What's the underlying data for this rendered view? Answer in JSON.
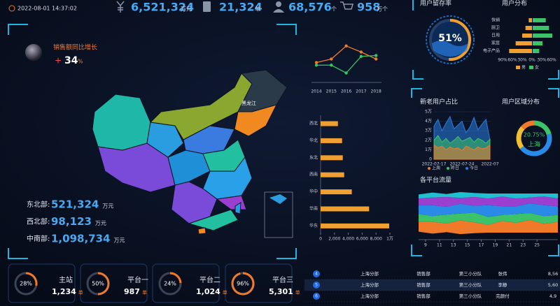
{
  "header": {
    "datetime": "2022-08-01 14:37:02"
  },
  "kpis": [
    {
      "value": "6,521,324",
      "unit": "万元"
    },
    {
      "value": "21,324",
      "unit": "单"
    },
    {
      "value": "68,576",
      "unit": "个"
    },
    {
      "value": "958",
      "unit": "万个"
    }
  ],
  "sales_growth": {
    "title": "销售额同比增长",
    "sign": "+",
    "value": 34,
    "unit": "%"
  },
  "regions": [
    {
      "name": "东北部:",
      "value": "521,324",
      "unit": "万元"
    },
    {
      "name": "西北部:",
      "value": "98,123",
      "unit": "万元"
    },
    {
      "name": "中南部:",
      "value": "1,098,734",
      "unit": "万元"
    }
  ],
  "map": {
    "label": "黑龙江"
  },
  "gauges": {
    "names": [
      "主站",
      "平台一",
      "平台二",
      "平台三"
    ],
    "values": [
      28,
      50,
      24,
      96
    ],
    "value_labels": [
      "28%",
      "50%",
      "24%",
      "96%"
    ],
    "counts": [
      "1,234",
      "987",
      "1,024",
      "5,301"
    ],
    "unit": "单"
  },
  "trend_chart": {
    "type": "line",
    "categories": [
      "2014",
      "2015",
      "2016",
      "2017",
      "2018"
    ],
    "series": [
      {
        "color": "#f07a2a",
        "values": [
          18,
          22,
          37,
          30,
          22
        ]
      },
      {
        "color": "#3cc36a",
        "values": [
          15,
          15,
          6,
          25,
          26
        ]
      }
    ],
    "ylim": [
      0,
      40
    ]
  },
  "region_bar": {
    "type": "hbar",
    "categories": [
      "西北",
      "华北",
      "东北",
      "西南",
      "华中",
      "华南",
      "华东"
    ],
    "values": [
      2500,
      3100,
      3200,
      3400,
      4500,
      7000,
      9900
    ],
    "color": "#f0a030",
    "xlim": [
      0,
      10000
    ],
    "xticks": [
      0,
      {
        "value": 2000,
        "label": "2,000"
      },
      {
        "value": 4000,
        "label": "4,000"
      },
      {
        "value": 6000,
        "label": "6,000"
      },
      {
        "value": 8000,
        "label": "8,000"
      },
      {
        "value": 10000,
        "label": "1万"
      }
    ]
  },
  "retention": {
    "title": "用户留存率",
    "value": 51,
    "value_label": "51%"
  },
  "user_distribution": {
    "title": "用户分布",
    "type": "butterfly",
    "categories": [
      "快销",
      "厨卫",
      "日用",
      "家居",
      "电子产品"
    ],
    "series": [
      {
        "name": "男",
        "color": "#f0a030",
        "values": [
          10,
          20,
          30,
          50,
          70
        ]
      },
      {
        "name": "女",
        "color": "#3cc36a",
        "values": [
          40,
          50,
          60,
          30,
          20
        ]
      }
    ],
    "xticks": [
      {
        "value": -90,
        "label": "90%"
      },
      {
        "value": -60,
        "label": "60%"
      },
      {
        "value": -30,
        "label": "30%"
      },
      {
        "value": 0,
        "label": "0%"
      },
      {
        "value": 30,
        "label": "30%"
      },
      {
        "value": 60,
        "label": "60%"
      }
    ]
  },
  "new_old_users": {
    "title": "新老用户占比",
    "type": "area",
    "categories": [
      "2022-07-17",
      null,
      null,
      null,
      null,
      null,
      null,
      "2022-07-24",
      null,
      null,
      null,
      null,
      null,
      null,
      "2022-07"
    ],
    "series": [
      {
        "name": "上周",
        "color": "#f07a2a",
        "values": [
          15000,
          12000,
          14000,
          10000,
          13000,
          11000,
          12000,
          9000,
          14000,
          12000,
          10000,
          13000,
          11000,
          12000,
          15000
        ]
      },
      {
        "name": "昨日",
        "color": "#3cc36a",
        "values": [
          20000,
          25000,
          18000,
          22000,
          17000,
          20000,
          24000,
          19000,
          21000,
          23000,
          18000,
          22000,
          20000,
          17000,
          21000
        ]
      },
      {
        "name": "今日",
        "color": "#2a7de0",
        "values": [
          35000,
          42000,
          30000,
          38000,
          45000,
          32000,
          36000,
          40000,
          28000,
          34000,
          44000,
          31000,
          37000,
          42000,
          20000
        ]
      }
    ],
    "ylim": [
      0,
      50000
    ],
    "yticks": [
      0,
      {
        "value": 10000,
        "label": "1万"
      },
      {
        "value": 20000,
        "label": "2万"
      },
      {
        "value": 30000,
        "label": "3万"
      },
      {
        "value": 40000,
        "label": "4万"
      },
      {
        "value": 50000,
        "label": "5万"
      }
    ]
  },
  "region_share": {
    "title": "用户区域分布",
    "type": "donut",
    "categories": [
      "上海",
      null,
      null,
      null
    ],
    "values": [
      20.75,
      44,
      22,
      13.25
    ],
    "value_labels": [
      "20.75%",
      null,
      null,
      null
    ],
    "colors": [
      "#3cc36a",
      "#2a8ae8",
      "#f0c030",
      "#f07a2a"
    ]
  },
  "platform_flow": {
    "title": "各平台流量",
    "type": "stream",
    "x": [
      8,
      10,
      12,
      14,
      16,
      18,
      20,
      22,
      24,
      26,
      28
    ],
    "series": [
      {
        "color": "#f07a2a",
        "values": [
          10,
          12,
          9,
          14,
          11,
          8,
          12,
          10,
          13,
          9,
          11
        ]
      },
      {
        "color": "#3cc36a",
        "values": [
          8,
          6,
          9,
          7,
          10,
          8,
          6,
          9,
          7,
          8,
          7
        ]
      },
      {
        "color": "#2a8ae8",
        "values": [
          9,
          11,
          8,
          10,
          7,
          12,
          9,
          8,
          10,
          11,
          9
        ]
      },
      {
        "color": "#9b3fd0",
        "values": [
          7,
          8,
          10,
          6,
          9,
          7,
          10,
          8,
          6,
          9,
          8
        ]
      },
      {
        "color": "#1fc0d0",
        "values": [
          4,
          5,
          3,
          6,
          4,
          5,
          3,
          5,
          4,
          3,
          5
        ]
      }
    ],
    "xlim": [
      8,
      28
    ],
    "xticks": [
      9,
      11,
      13,
      15,
      17,
      19,
      21,
      23,
      25
    ]
  },
  "table": {
    "rows": [
      [
        "4",
        "上海分部",
        "销售部",
        "第三小分队",
        "张伟",
        "8,56"
      ],
      [
        "5",
        "上海分部",
        "销售部",
        "第三小分队",
        "李静",
        "5,60"
      ],
      [
        "6",
        "上海分部",
        "销售部",
        "第三小分队",
        "完颜付",
        "4,9"
      ]
    ]
  }
}
